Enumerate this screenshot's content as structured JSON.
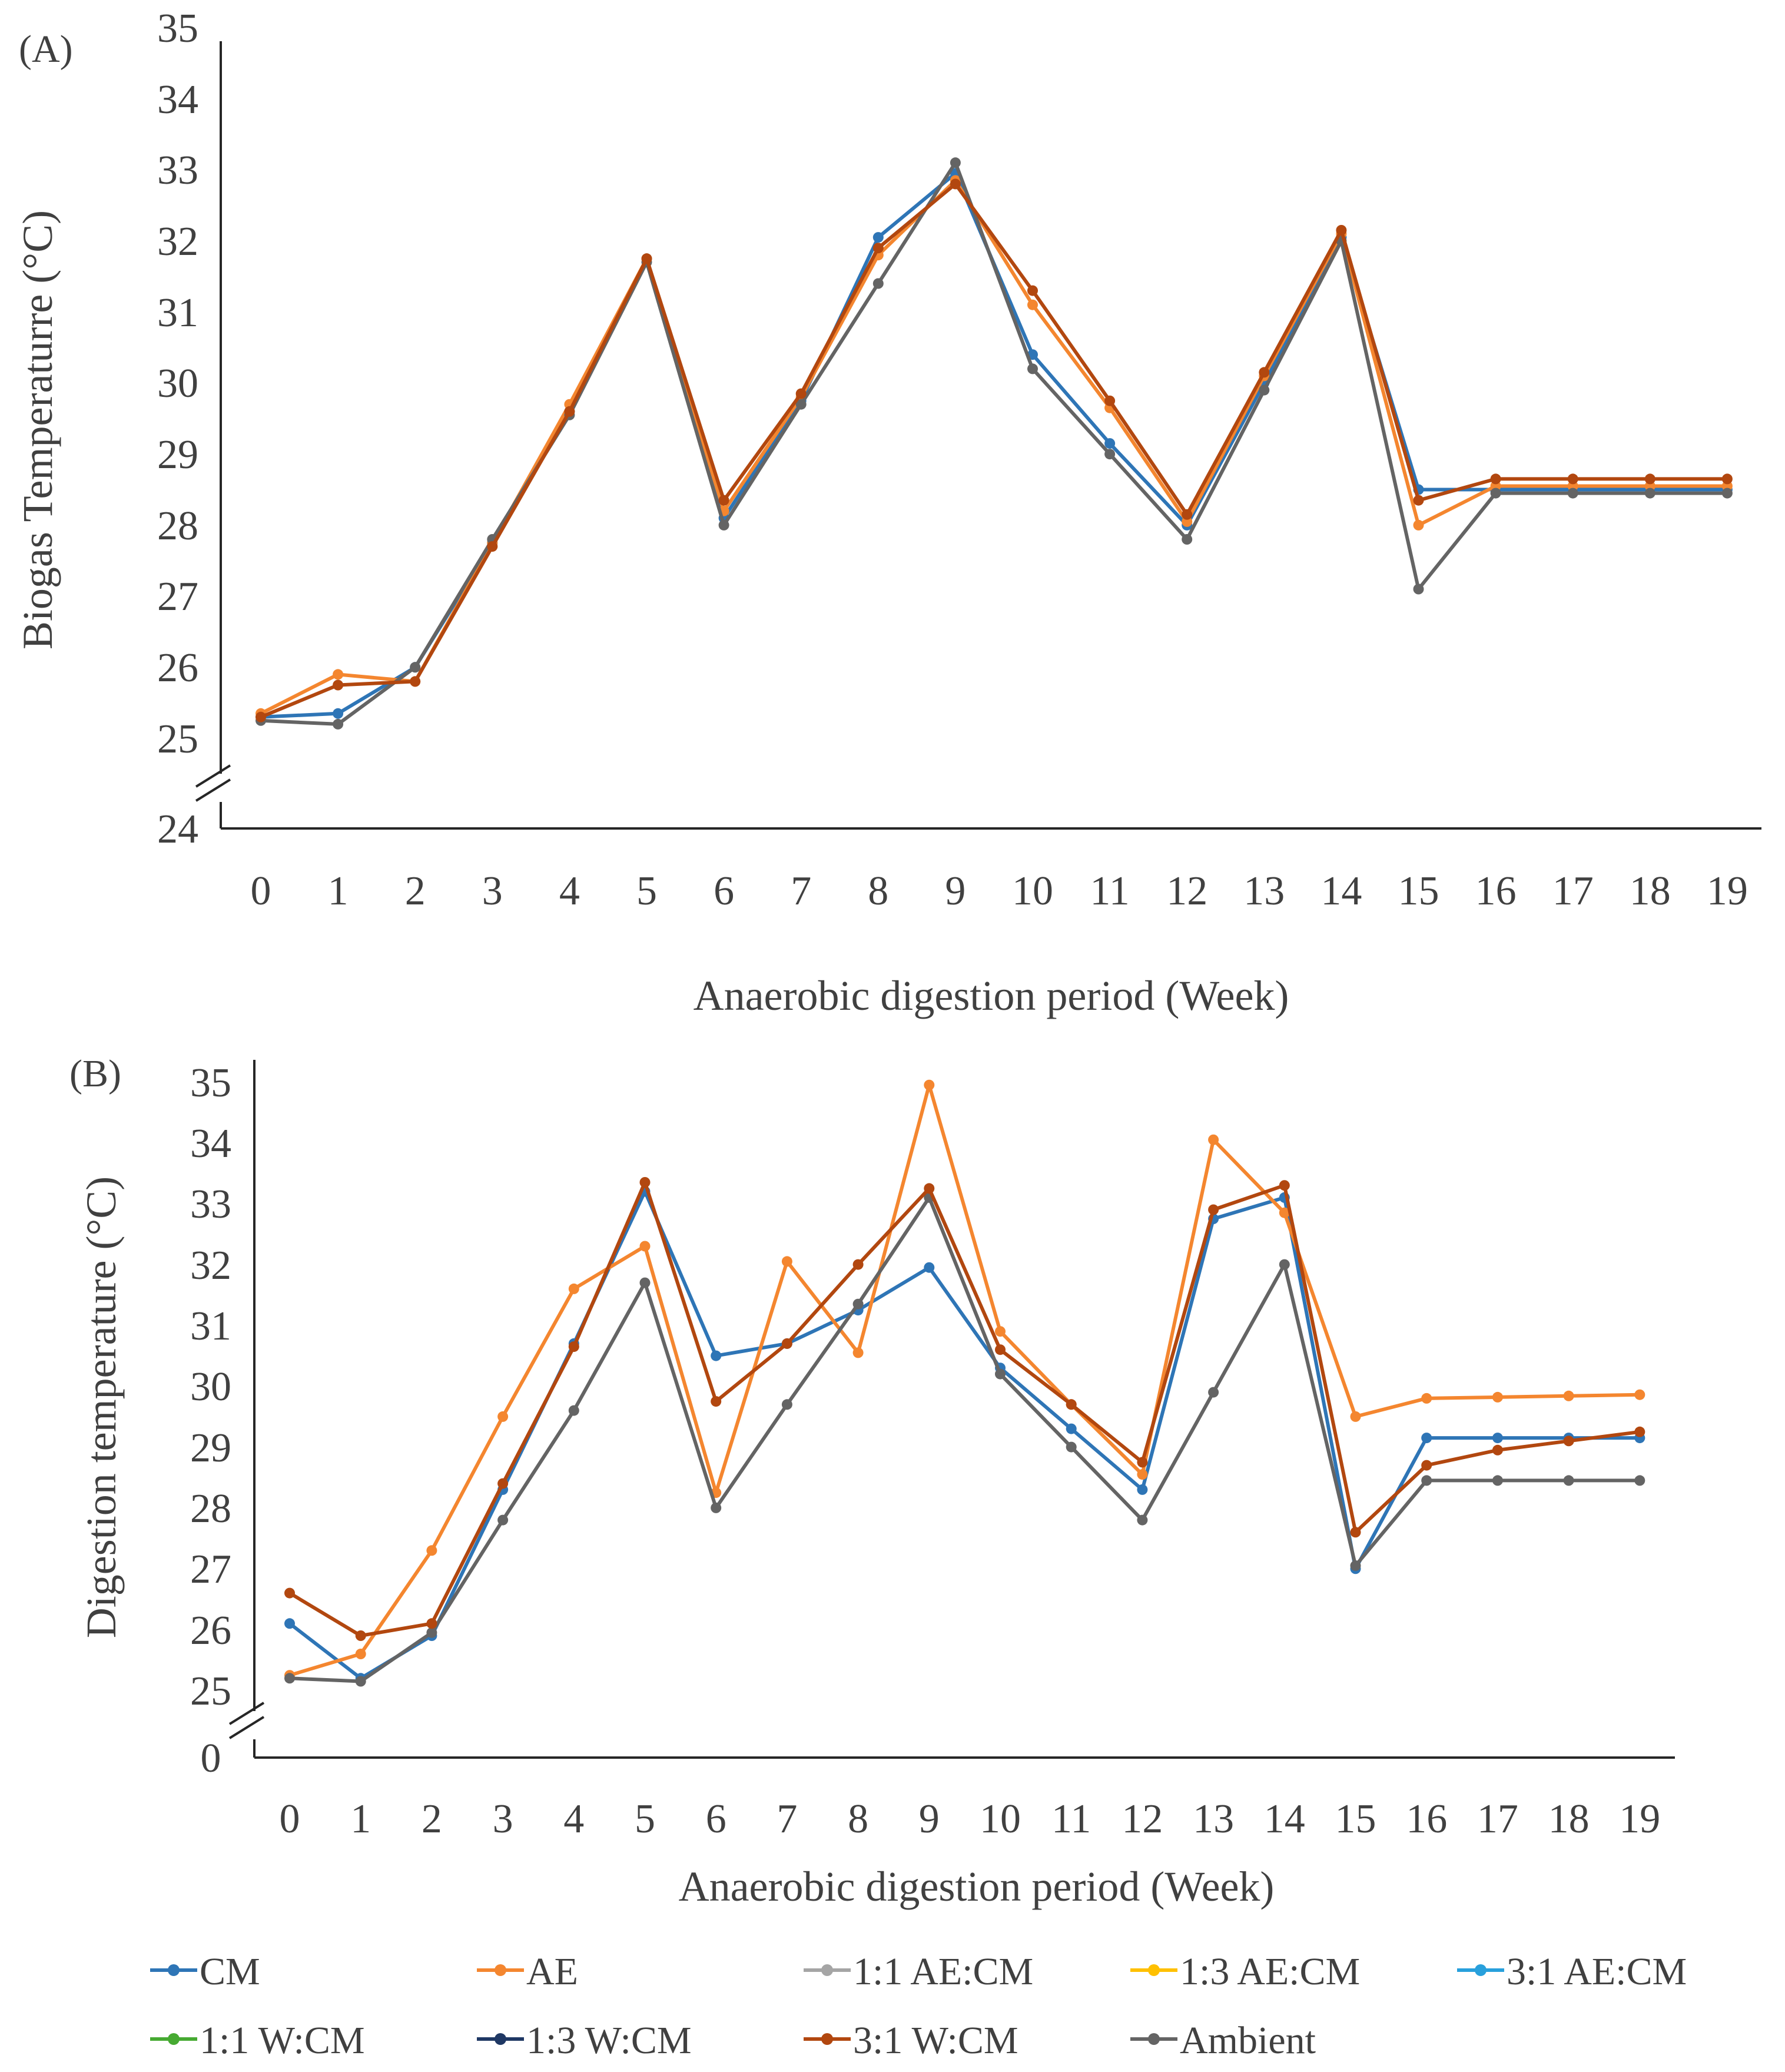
{
  "weeks": [
    "0",
    "1",
    "2",
    "3",
    "4",
    "5",
    "6",
    "7",
    "8",
    "9",
    "10",
    "11",
    "12",
    "13",
    "14",
    "15",
    "16",
    "17",
    "18",
    "19"
  ],
  "series_meta": [
    {
      "key": "CM",
      "name": "CM",
      "color": "#2E75B6"
    },
    {
      "key": "AE",
      "name": "AE",
      "color": "#F4862F"
    },
    {
      "key": "AE11",
      "name": "1:1 AE:CM",
      "color": "#A5A5A5"
    },
    {
      "key": "AE13",
      "name": "1:3 AE:CM",
      "color": "#FFC000"
    },
    {
      "key": "AE31",
      "name": "3:1 AE:CM",
      "color": "#28A0DC"
    },
    {
      "key": "W11",
      "name": "1:1 W:CM",
      "color": "#46AA32"
    },
    {
      "key": "W13",
      "name": "1:3 W:CM",
      "color": "#1F3864"
    },
    {
      "key": "W31",
      "name": "3:1 W:CM",
      "color": "#B2470F"
    },
    {
      "key": "AMB",
      "name": "Ambient",
      "color": "#646464"
    }
  ],
  "chart_data": [
    {
      "type": "line",
      "panel_label": "(A)",
      "title": "",
      "xlabel": "Anaerobic digestion period (Week)",
      "ylabel": "Biogas Temperaturre (°C)",
      "categories": [
        "0",
        "1",
        "2",
        "3",
        "4",
        "5",
        "6",
        "7",
        "8",
        "9",
        "10",
        "11",
        "12",
        "13",
        "14",
        "15",
        "16",
        "17",
        "18",
        "19"
      ],
      "ylim": [
        24,
        35
      ],
      "y_ticks": [
        "24",
        "25",
        "26",
        "27",
        "28",
        "29",
        "30",
        "31",
        "32",
        "33",
        "34",
        "35"
      ],
      "axis_break": "between 24 and 25",
      "grid": false,
      "series": [
        {
          "key": "CM",
          "name": "CM",
          "values": [
            25.3,
            25.35,
            26.0,
            27.75,
            29.6,
            31.75,
            28.1,
            29.75,
            32.05,
            32.95,
            30.4,
            29.15,
            28.0,
            30.0,
            32.05,
            28.5,
            28.5,
            28.5,
            28.5,
            28.5
          ]
        },
        {
          "key": "AE",
          "name": "AE",
          "values": [
            25.35,
            25.9,
            25.8,
            27.75,
            29.7,
            31.75,
            28.2,
            29.8,
            31.8,
            32.85,
            31.1,
            29.65,
            28.05,
            30.1,
            32.1,
            28.0,
            28.55,
            28.55,
            28.55,
            28.55
          ]
        },
        {
          "key": "AMB",
          "name": "Ambient",
          "values": [
            25.25,
            25.2,
            26.0,
            27.8,
            29.55,
            31.7,
            28.0,
            29.7,
            31.4,
            33.1,
            30.2,
            29.0,
            27.8,
            29.9,
            32.0,
            27.1,
            28.45,
            28.45,
            28.45,
            28.45
          ]
        },
        {
          "key": "W31",
          "name": "3:1 W:CM",
          "values": [
            25.3,
            25.75,
            25.8,
            27.7,
            29.6,
            31.75,
            28.35,
            29.85,
            31.9,
            32.8,
            31.3,
            29.75,
            28.15,
            30.15,
            32.15,
            28.35,
            28.65,
            28.65,
            28.65,
            28.65
          ]
        }
      ]
    },
    {
      "type": "line",
      "panel_label": "(B)",
      "title": "",
      "xlabel": "Anaerobic digestion period (Week)",
      "ylabel": "Digestion temperature (°C)",
      "categories": [
        "0",
        "1",
        "2",
        "3",
        "4",
        "5",
        "6",
        "7",
        "8",
        "9",
        "10",
        "11",
        "12",
        "13",
        "14",
        "15",
        "16",
        "17",
        "18",
        "19"
      ],
      "ylim": [
        0,
        35
      ],
      "y_ticks": [
        "0",
        "25",
        "26",
        "27",
        "28",
        "29",
        "30",
        "31",
        "32",
        "33",
        "34",
        "35"
      ],
      "axis_break": "between 0 and 25",
      "grid": false,
      "series": [
        {
          "key": "CM",
          "name": "CM",
          "values": [
            26.1,
            25.2,
            25.9,
            28.3,
            30.7,
            33.2,
            30.5,
            30.7,
            31.25,
            31.95,
            30.3,
            29.3,
            28.3,
            32.75,
            33.1,
            27.0,
            29.15,
            29.15,
            29.15,
            29.15
          ]
        },
        {
          "key": "AE",
          "name": "AE",
          "values": [
            25.25,
            25.6,
            27.3,
            29.5,
            31.6,
            32.3,
            28.25,
            32.05,
            30.55,
            34.95,
            30.9,
            29.7,
            28.55,
            34.05,
            32.85,
            29.5,
            29.8,
            29.82,
            29.84,
            29.86
          ]
        },
        {
          "key": "AMB",
          "name": "Ambient",
          "values": [
            25.2,
            25.15,
            25.95,
            27.8,
            29.6,
            31.7,
            28.0,
            29.7,
            31.35,
            33.1,
            30.2,
            29.0,
            27.8,
            29.9,
            32.0,
            27.05,
            28.45,
            28.45,
            28.45,
            28.45
          ]
        },
        {
          "key": "W31",
          "name": "3:1 W:CM",
          "values": [
            26.6,
            25.9,
            26.1,
            28.4,
            30.65,
            33.35,
            29.75,
            30.7,
            32.0,
            33.25,
            30.6,
            29.7,
            28.75,
            32.9,
            33.3,
            27.6,
            28.7,
            28.95,
            29.1,
            29.25
          ]
        }
      ]
    }
  ],
  "legend": {
    "placement": "bottom",
    "items": [
      "CM",
      "AE",
      "1:1 AE:CM",
      "1:3 AE:CM",
      "3:1 AE:CM",
      "1:1 W:CM",
      "1:3 W:CM",
      "3:1 W:CM",
      "Ambient"
    ]
  }
}
